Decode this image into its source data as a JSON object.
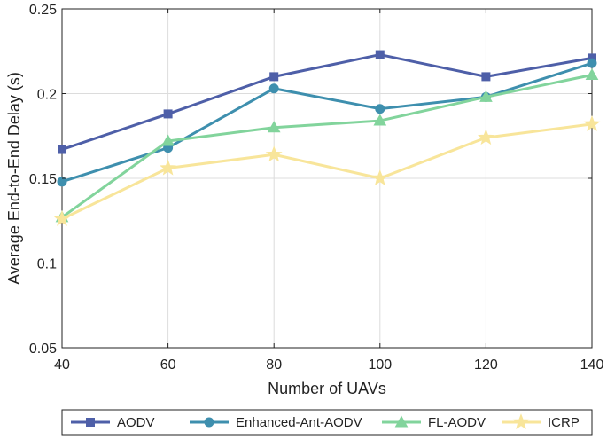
{
  "chart_data": {
    "type": "line",
    "title": "",
    "xlabel": "Number of UAVs",
    "ylabel": "Average End-to-End Delay (s)",
    "x": [
      40,
      60,
      80,
      100,
      120,
      140
    ],
    "xticks": [
      "40",
      "60",
      "80",
      "100",
      "120",
      "140"
    ],
    "xlim": [
      40,
      140
    ],
    "ylim": [
      0.05,
      0.25
    ],
    "yticks": [
      "0.05",
      "0.1",
      "0.15",
      "0.2",
      "0.25"
    ],
    "ytick_values": [
      0.05,
      0.1,
      0.15,
      0.2,
      0.25
    ],
    "grid": true,
    "legend_position": "bottom",
    "series": [
      {
        "name": "AODV",
        "color": "#4e5fa8",
        "marker": "square",
        "values": [
          0.167,
          0.188,
          0.21,
          0.223,
          0.21,
          0.221
        ]
      },
      {
        "name": "Enhanced-Ant-AODV",
        "color": "#3e8fae",
        "marker": "circle",
        "values": [
          0.148,
          0.168,
          0.203,
          0.191,
          0.198,
          0.218
        ]
      },
      {
        "name": "FL-AODV",
        "color": "#82d49c",
        "marker": "triangle",
        "values": [
          0.127,
          0.172,
          0.18,
          0.184,
          0.198,
          0.211
        ]
      },
      {
        "name": "ICRP",
        "color": "#f8e59a",
        "marker": "star",
        "values": [
          0.126,
          0.156,
          0.164,
          0.15,
          0.174,
          0.182
        ]
      }
    ]
  }
}
